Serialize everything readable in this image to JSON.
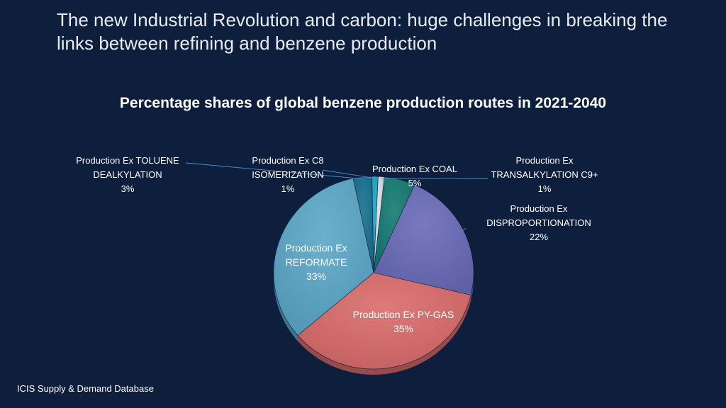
{
  "slide": {
    "title": "The new Industrial Revolution and carbon: huge challenges in breaking the links between refining and benzene production",
    "source": "ICIS Supply & Demand Database"
  },
  "chart_data": {
    "type": "pie",
    "title": "Percentage shares of global benzene production routes in 2021-2040",
    "unit": "%",
    "slices": [
      {
        "name": "Production Ex C8 ISOMERIZATION",
        "label_lines": [
          "Production Ex C8",
          "ISOMERIZATION"
        ],
        "value": 1,
        "color": "#1aa8c8",
        "label_placement": "outside"
      },
      {
        "name": "Production Ex TRANSALKYLATION C9+",
        "label_lines": [
          "Production Ex",
          "TRANSALKYLATION  C9+"
        ],
        "value": 1,
        "color": "#d9dde2",
        "label_placement": "outside"
      },
      {
        "name": "Production Ex COAL",
        "label_lines": [
          "Production Ex COAL"
        ],
        "value": 5,
        "color": "#137a72",
        "label_placement": "outside"
      },
      {
        "name": "Production Ex DISPROPORTIONATION",
        "label_lines": [
          "Production Ex",
          "DISPROPORTIONATION"
        ],
        "value": 22,
        "color": "#6a6ab8",
        "label_placement": "outside"
      },
      {
        "name": "Production Ex PY-GAS",
        "label_lines": [
          "Production Ex PY-GAS"
        ],
        "value": 35,
        "color": "#d96b6b",
        "label_placement": "inside"
      },
      {
        "name": "Production Ex REFORMATE",
        "label_lines": [
          "Production Ex",
          "REFORMATE"
        ],
        "value": 33,
        "color": "#5ba7c7",
        "label_placement": "inside"
      },
      {
        "name": "Production Ex TOLUENE DEALKYLATION",
        "label_lines": [
          "Production Ex TOLUENE",
          "DEALKYLATION"
        ],
        "value": 3,
        "color": "#15708f",
        "label_placement": "outside"
      }
    ],
    "legend": "none",
    "style": "3d-tilted"
  }
}
